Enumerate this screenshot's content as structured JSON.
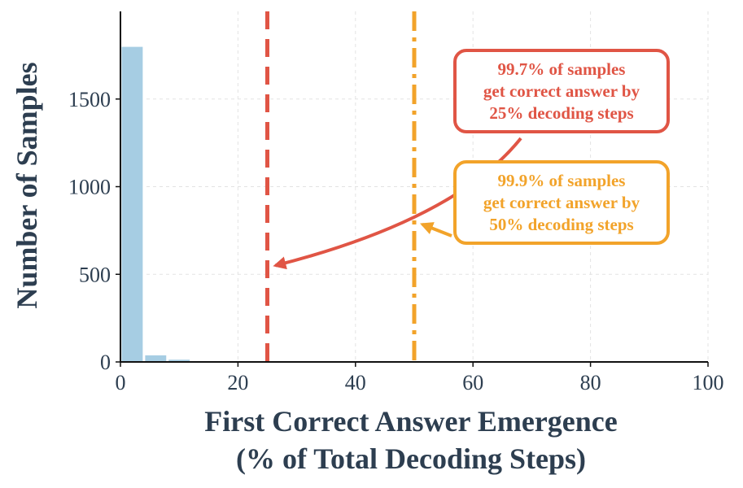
{
  "chart_data": {
    "type": "bar",
    "xlabel_lines": [
      "First Correct Answer Emergence",
      "(% of Total Decoding Steps)"
    ],
    "ylabel": "Number of Samples",
    "xlim": [
      0,
      100
    ],
    "ylim": [
      0,
      2000
    ],
    "xticks": [
      0,
      20,
      40,
      60,
      80,
      100
    ],
    "yticks": [
      0,
      500,
      1000,
      1500
    ],
    "grid": true,
    "bin_width": 4,
    "bins": [
      {
        "x0": 0,
        "x1": 4,
        "value": 1800
      },
      {
        "x0": 4,
        "x1": 8,
        "value": 40
      },
      {
        "x0": 8,
        "x1": 12,
        "value": 15
      },
      {
        "x0": 12,
        "x1": 16,
        "value": 3
      }
    ],
    "bar_color": "#a6cde3",
    "reference_lines": [
      {
        "x": 25,
        "style": "dashed",
        "color": "#e05545"
      },
      {
        "x": 50,
        "style": "dashdot",
        "color": "#f2a32a"
      }
    ],
    "annotations": [
      {
        "color": "#e05545",
        "lines": [
          "99.7% of samples",
          "get correct answer by",
          "25% decoding steps"
        ],
        "points_to": {
          "x": 25,
          "y": 550
        }
      },
      {
        "color": "#f2a32a",
        "lines": [
          "99.9% of samples",
          "get correct answer by",
          "50% decoding steps"
        ],
        "points_to": {
          "x": 50,
          "y": 720
        }
      }
    ]
  }
}
